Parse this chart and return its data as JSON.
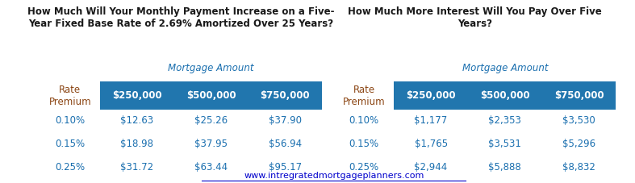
{
  "title1": "How Much Will Your Monthly Payment Increase on a Five-\nYear Fixed Base Rate of 2.69% Amortized Over 25 Years?",
  "title2": "How Much More Interest Will You Pay Over Five\nYears?",
  "subtitle": "Mortgage Amount",
  "col_headers": [
    "$250,000",
    "$500,000",
    "$750,000"
  ],
  "row_label_header": "Rate\nPremium",
  "row_labels": [
    "0.10%",
    "0.15%",
    "0.25%"
  ],
  "table1_data": [
    [
      "$12.63",
      "$25.26",
      "$37.90"
    ],
    [
      "$18.98",
      "$37.95",
      "$56.94"
    ],
    [
      "$31.72",
      "$63.44",
      "$95.17"
    ]
  ],
  "table2_data": [
    [
      "$1,177",
      "$2,353",
      "$3,530"
    ],
    [
      "$1,765",
      "$3,531",
      "$5,296"
    ],
    [
      "$2,944",
      "$5,888",
      "$8,832"
    ]
  ],
  "header_bg": "#2176AE",
  "header_fg": "#FFFFFF",
  "title_color": "#1A1A1A",
  "data_color": "#1A6FAF",
  "row_label_color": "#8B4513",
  "link_text": "www.intregratedmortgageplanners.com",
  "link_color": "#0000CC",
  "bg_color": "#FFFFFF"
}
